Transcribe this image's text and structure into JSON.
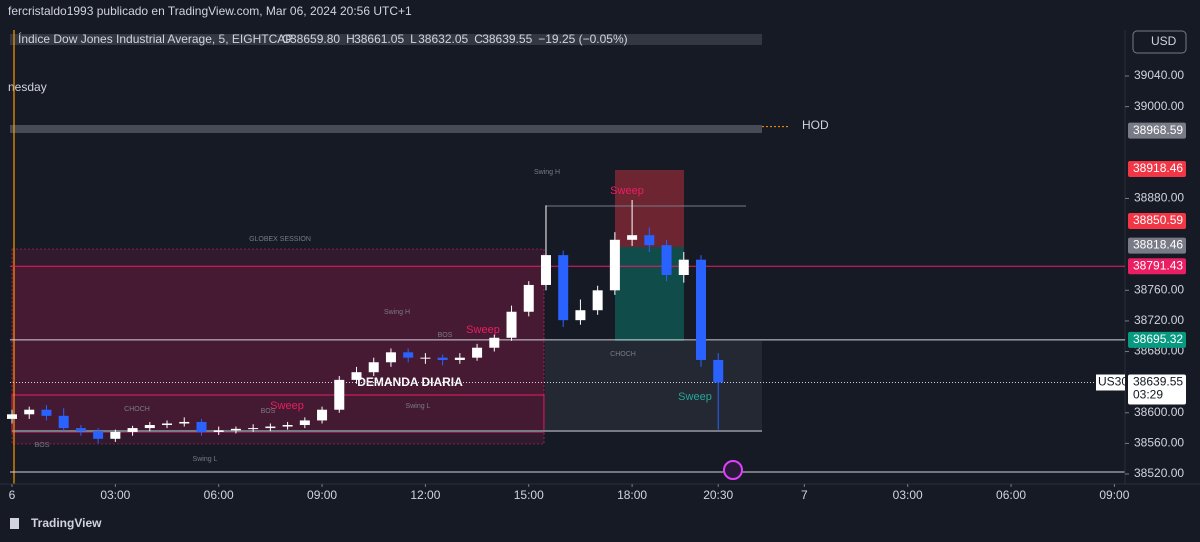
{
  "header": {
    "publisher": "fercristaldo1993 publicado en TradingView.com, Mar 06, 2024 20:56 UTC+1",
    "title": "Índice Dow Jones Industrial Average, 5, EIGHTCAP",
    "ohlc": [
      {
        "label": "O",
        "value": "38659.80"
      },
      {
        "label": "H",
        "value": "38661.05"
      },
      {
        "label": "L",
        "value": "38632.05"
      },
      {
        "label": "C",
        "value": "38639.55"
      }
    ],
    "change": "−19.25 (−0.05%)",
    "day": "nesday",
    "currency": "USD"
  },
  "annotations": {
    "hod": "HOD",
    "globex": "GLOBEX SESSION",
    "swing_h": "Swing H",
    "swing_l": "Swing L",
    "sweep": "Sweep",
    "bos": "BOS",
    "choch": "CHOCH",
    "demand": "DEMANDA DIARIA"
  },
  "footer": {
    "brand": "TradingView"
  },
  "chart_data": {
    "type": "candlestick",
    "up_color": "#ffffff",
    "down_color": "#2962ff",
    "x": [
      0,
      0.5,
      1,
      1.5,
      2,
      2.5,
      3,
      3.5,
      4,
      4.5,
      5,
      5.5,
      6,
      6.5,
      7,
      7.5,
      8,
      8.5,
      9,
      9.5,
      10,
      10.5,
      11,
      11.5,
      12,
      12.5,
      13,
      13.5,
      14,
      14.5,
      15,
      15.5,
      16,
      16.5,
      17,
      17.5,
      18,
      18.5,
      19,
      19.5,
      20,
      20.5
    ],
    "open": [
      38592,
      38598,
      38604,
      38596,
      38580,
      38576,
      38566,
      38575,
      38580,
      38584,
      38586,
      38588,
      38575,
      38577,
      38579,
      38580,
      38582,
      38584,
      38590,
      38604,
      38643,
      38653,
      38666,
      38679,
      38672,
      38672,
      38669,
      38672,
      38685,
      38698,
      38732,
      38767,
      38806,
      38721,
      38734,
      38760,
      38826,
      38832,
      38819,
      38780,
      38800,
      38669
    ],
    "high": [
      38604,
      38608,
      38610,
      38606,
      38584,
      38580,
      38578,
      38583,
      38588,
      38590,
      38594,
      38592,
      38582,
      38582,
      38585,
      38586,
      38588,
      38594,
      38608,
      38648,
      38660,
      38672,
      38684,
      38684,
      38678,
      38676,
      38678,
      38690,
      38702,
      38740,
      38772,
      38871,
      38812,
      38748,
      38766,
      38836,
      38878,
      38842,
      38826,
      38810,
      38806,
      38678
    ],
    "low": [
      38586,
      38592,
      38590,
      38576,
      38570,
      38560,
      38562,
      38570,
      38576,
      38580,
      38582,
      38570,
      38571,
      38573,
      38575,
      38576,
      38578,
      38580,
      38586,
      38600,
      38638,
      38648,
      38660,
      38666,
      38664,
      38662,
      38664,
      38668,
      38680,
      38694,
      38726,
      38760,
      38712,
      38715,
      38728,
      38754,
      38818,
      38810,
      38772,
      38770,
      38660,
      38578
    ],
    "close": [
      38598,
      38604,
      38596,
      38580,
      38576,
      38566,
      38575,
      38580,
      38584,
      38586,
      38588,
      38575,
      38577,
      38579,
      38580,
      38582,
      38584,
      38590,
      38604,
      38643,
      38653,
      38666,
      38679,
      38672,
      38672,
      38669,
      38672,
      38685,
      38698,
      38732,
      38767,
      38806,
      38721,
      38734,
      38760,
      38826,
      38832,
      38819,
      38780,
      38800,
      38669,
      38639.55
    ],
    "xlim": [
      0,
      32.3
    ],
    "ylim": [
      38510,
      39090
    ],
    "xticks": [
      {
        "value": 0,
        "label": "6"
      },
      {
        "value": 3,
        "label": "03:00"
      },
      {
        "value": 6,
        "label": "06:00"
      },
      {
        "value": 9,
        "label": "09:00"
      },
      {
        "value": 12,
        "label": "12:00"
      },
      {
        "value": 15,
        "label": "15:00"
      },
      {
        "value": 18,
        "label": "18:00"
      },
      {
        "value": 20.5,
        "label": "20:30"
      },
      {
        "value": 23,
        "label": "7"
      },
      {
        "value": 26,
        "label": "03:00"
      },
      {
        "value": 29,
        "label": "06:00"
      },
      {
        "value": 32,
        "label": "09:00"
      }
    ],
    "yticks": [
      {
        "value": 39040,
        "label": "39040.00"
      },
      {
        "value": 39000,
        "label": "39000.00"
      },
      {
        "value": 38880,
        "label": "38880.00"
      },
      {
        "value": 38760,
        "label": "38760.00"
      },
      {
        "value": 38720,
        "label": "38720.00"
      },
      {
        "value": 38680,
        "label": "38680.00"
      },
      {
        "value": 38600,
        "label": "38600.00"
      },
      {
        "value": 38560,
        "label": "38560.00"
      },
      {
        "value": 38520,
        "label": "38520.00"
      }
    ],
    "price_labels": [
      {
        "value": 38968.59,
        "color": "#787b86"
      },
      {
        "value": 38918.46,
        "color": "#f23645"
      },
      {
        "value": 38850.59,
        "color": "#f23645"
      },
      {
        "value": 38818.46,
        "color": "#787b86"
      },
      {
        "value": 38791.43,
        "color": "#e91e63"
      },
      {
        "value": 38695.32,
        "color": "#089981"
      }
    ],
    "last": {
      "value": 38639.55,
      "symbol": "US30",
      "countdown": "03:29"
    }
  }
}
